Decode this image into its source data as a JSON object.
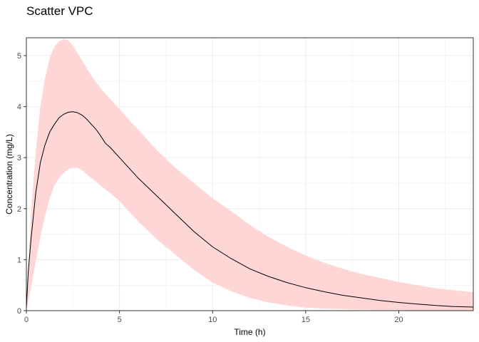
{
  "chart_data": {
    "type": "area",
    "title": "Scatter VPC",
    "xlabel": "Time (h)",
    "ylabel": "Concentration (mg/L)",
    "xlim": [
      0,
      24
    ],
    "ylim": [
      0,
      5.35
    ],
    "xticks": [
      0,
      5,
      10,
      15,
      20
    ],
    "yticks": [
      0,
      1,
      2,
      3,
      4,
      5
    ],
    "grid": true,
    "legend": "none",
    "colors": {
      "band": "#ffd6d6",
      "median": "#000000",
      "grid": "#ebebeb",
      "frame": "#333333"
    },
    "series": [
      {
        "role": "median-line",
        "x": [
          0,
          0.1,
          0.25,
          0.5,
          0.75,
          1,
          1.25,
          1.5,
          1.75,
          2,
          2.25,
          2.5,
          2.75,
          3,
          3.25,
          3.5,
          3.75,
          4,
          4.25,
          4.5,
          5,
          6,
          7,
          8,
          9,
          10,
          11,
          12,
          13,
          14,
          15,
          16,
          17,
          18,
          19,
          20,
          21,
          22,
          23,
          24
        ],
        "y": [
          0.05,
          0.75,
          1.4,
          2.3,
          2.9,
          3.25,
          3.5,
          3.65,
          3.78,
          3.85,
          3.89,
          3.9,
          3.88,
          3.83,
          3.75,
          3.65,
          3.55,
          3.42,
          3.28,
          3.2,
          3.0,
          2.6,
          2.25,
          1.9,
          1.55,
          1.25,
          1.02,
          0.82,
          0.67,
          0.55,
          0.45,
          0.37,
          0.3,
          0.25,
          0.2,
          0.16,
          0.13,
          0.1,
          0.08,
          0.07
        ]
      },
      {
        "role": "prediction-band-upper",
        "x": [
          0,
          0.25,
          0.5,
          0.75,
          1,
          1.25,
          1.5,
          1.75,
          2,
          2.25,
          2.5,
          2.75,
          3,
          3.5,
          4,
          4.5,
          5,
          6,
          7,
          8,
          9,
          10,
          11,
          12,
          13,
          14,
          15,
          16,
          17,
          18,
          19,
          20,
          21,
          22,
          23,
          24
        ],
        "y": [
          0.1,
          1.9,
          3.1,
          4.0,
          4.55,
          4.95,
          5.17,
          5.28,
          5.32,
          5.3,
          5.2,
          5.05,
          4.9,
          4.6,
          4.35,
          4.15,
          3.95,
          3.55,
          3.15,
          2.8,
          2.5,
          2.2,
          1.95,
          1.68,
          1.45,
          1.25,
          1.08,
          0.94,
          0.82,
          0.72,
          0.64,
          0.56,
          0.5,
          0.44,
          0.4,
          0.36
        ]
      },
      {
        "role": "prediction-band-lower",
        "x": [
          0,
          0.25,
          0.5,
          0.75,
          1,
          1.25,
          1.5,
          1.75,
          2,
          2.25,
          2.5,
          2.75,
          3,
          3.5,
          4,
          4.5,
          5,
          6,
          7,
          8,
          9,
          10,
          11,
          12,
          13,
          14,
          15,
          16,
          17,
          18,
          19,
          20,
          21,
          22,
          23,
          24
        ],
        "y": [
          0.0,
          0.45,
          0.95,
          1.45,
          1.85,
          2.2,
          2.45,
          2.6,
          2.7,
          2.77,
          2.8,
          2.8,
          2.75,
          2.6,
          2.45,
          2.3,
          2.15,
          1.75,
          1.4,
          1.1,
          0.8,
          0.55,
          0.38,
          0.25,
          0.16,
          0.1,
          0.06,
          0.04,
          0.03,
          0.02,
          0.01,
          0.01,
          0.0,
          0.0,
          0.0,
          0.0
        ]
      }
    ]
  }
}
